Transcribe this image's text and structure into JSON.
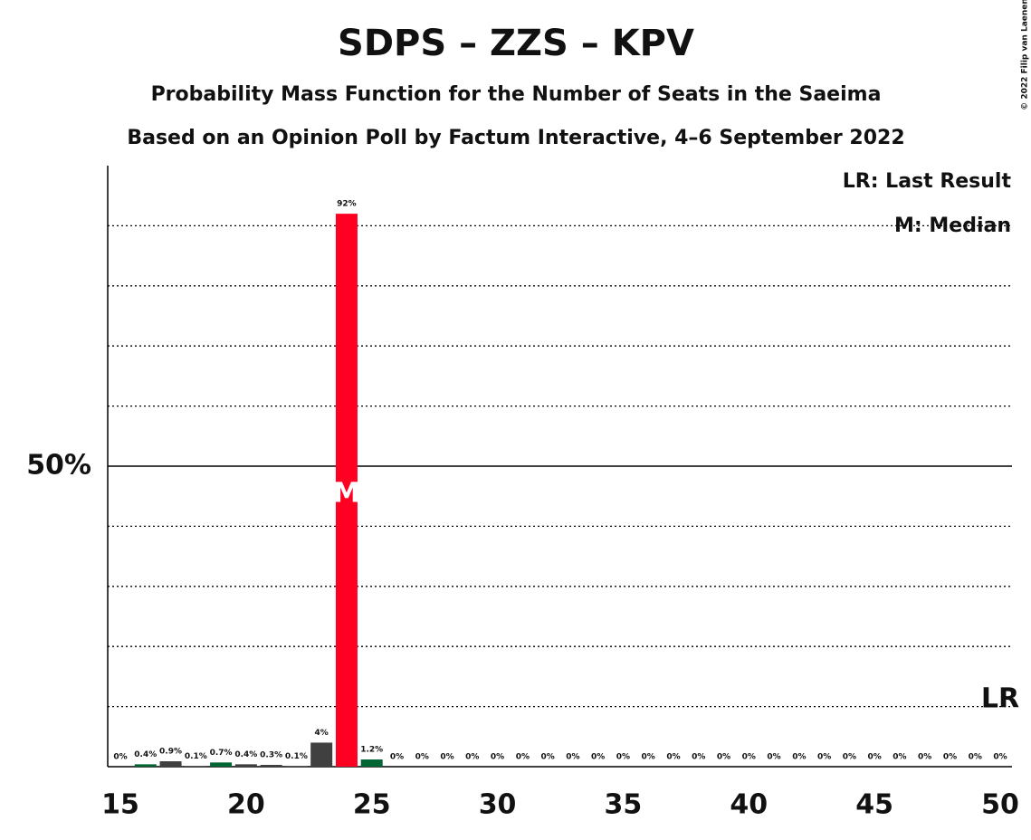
{
  "chart_data": {
    "type": "bar",
    "title": "SDPS – ZZS – KPV",
    "subtitle": "Probability Mass Function for the Number of Seats in the Saeima",
    "subtitle2": "Based on an Opinion Poll by Factum Interactive, 4–6 September 2022",
    "copyright": "© 2022 Filip van Laenen",
    "legend": [
      "LR: Last Result",
      "M: Median"
    ],
    "median": 24,
    "median_label": "M",
    "last_result": 50,
    "last_result_label": "LR",
    "x": [
      15,
      16,
      17,
      18,
      19,
      20,
      21,
      22,
      23,
      24,
      25,
      26,
      27,
      28,
      29,
      30,
      31,
      32,
      33,
      34,
      35,
      36,
      37,
      38,
      39,
      40,
      41,
      42,
      43,
      44,
      45,
      46,
      47,
      48,
      49,
      50
    ],
    "values": [
      0,
      0.4,
      0.9,
      0.1,
      0.7,
      0.4,
      0.3,
      0.1,
      4,
      92,
      1.2,
      0,
      0,
      0,
      0,
      0,
      0,
      0,
      0,
      0,
      0,
      0,
      0,
      0,
      0,
      0,
      0,
      0,
      0,
      0,
      0,
      0,
      0,
      0,
      0,
      0
    ],
    "value_labels": [
      "0%",
      "0.4%",
      "0.9%",
      "0.1%",
      "0.7%",
      "0.4%",
      "0.3%",
      "0.1%",
      "4%",
      "92%",
      "1.2%",
      "0%",
      "0%",
      "0%",
      "0%",
      "0%",
      "0%",
      "0%",
      "0%",
      "0%",
      "0%",
      "0%",
      "0%",
      "0%",
      "0%",
      "0%",
      "0%",
      "0%",
      "0%",
      "0%",
      "0%",
      "0%",
      "0%",
      "0%",
      "0%",
      "0%"
    ],
    "colors": [
      "#404040",
      "#006633",
      "#404040",
      "#404040",
      "#006633",
      "#404040",
      "#404040",
      "#404040",
      "#404040",
      "#ff0022",
      "#006633",
      "#404040",
      "#404040",
      "#404040",
      "#404040",
      "#404040",
      "#404040",
      "#404040",
      "#404040",
      "#404040",
      "#404040",
      "#404040",
      "#404040",
      "#404040",
      "#404040",
      "#404040",
      "#404040",
      "#404040",
      "#404040",
      "#404040",
      "#404040",
      "#404040",
      "#404040",
      "#404040",
      "#404040",
      "#404040"
    ],
    "xlim": [
      15,
      50
    ],
    "xticks": [
      15,
      20,
      25,
      30,
      35,
      40,
      45,
      50
    ],
    "ylim": [
      0,
      100
    ],
    "yticks": [
      {
        "value": 50,
        "label": "50%"
      }
    ],
    "minor_yticks": [
      10,
      20,
      30,
      40,
      60,
      70,
      80,
      90
    ]
  }
}
